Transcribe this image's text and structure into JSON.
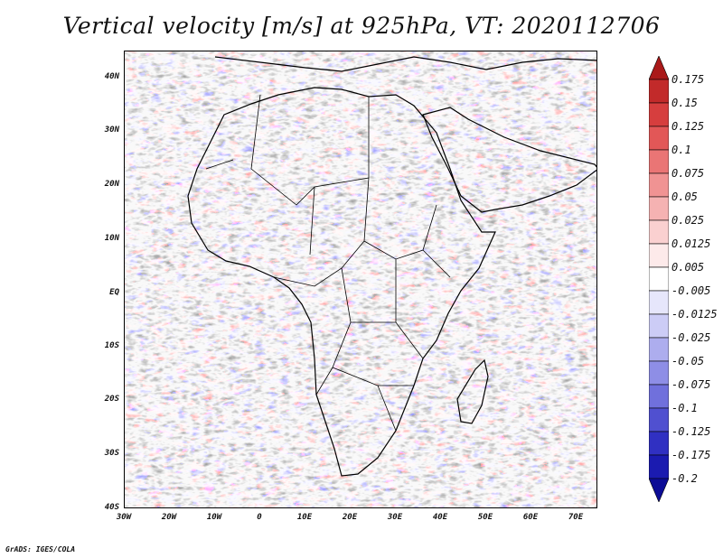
{
  "title": "Vertical velocity [m/s] at 925hPa, VT: 2020112706",
  "credit": "GrADS: IGES/COLA",
  "map": {
    "lat_ticks": [
      "40N",
      "30N",
      "20N",
      "10N",
      "EQ",
      "10S",
      "20S",
      "30S",
      "40S"
    ],
    "lon_ticks": [
      "30W",
      "20W",
      "10W",
      "0",
      "10E",
      "20E",
      "30E",
      "40E",
      "50E",
      "60E",
      "70E"
    ],
    "extent": {
      "lon_min": -30,
      "lon_max": 75,
      "lat_min": -40,
      "lat_max": 45
    },
    "field_colors": {
      "positive": "#e05a5a",
      "negative": "#5a5ae0",
      "neutral": "#ffffff",
      "coast": "#000000"
    }
  },
  "colorbar": {
    "labels": [
      "0.175",
      "0.15",
      "0.125",
      "0.1",
      "0.075",
      "0.05",
      "0.025",
      "0.0125",
      "0.005",
      "-0.005",
      "-0.0125",
      "-0.025",
      "-0.05",
      "-0.075",
      "-0.1",
      "-0.125",
      "-0.175",
      "-0.2"
    ],
    "colors": [
      "#aa1a1a",
      "#c22a2a",
      "#d63e3e",
      "#e25757",
      "#ea7575",
      "#f09393",
      "#f5b2b2",
      "#fad0d0",
      "#fdeaea",
      "#ffffff",
      "#e6e6fb",
      "#ccccf6",
      "#adadee",
      "#8e8ee6",
      "#7070dc",
      "#5050d0",
      "#3030c2",
      "#1b1bb0",
      "#0c0c96"
    ]
  }
}
